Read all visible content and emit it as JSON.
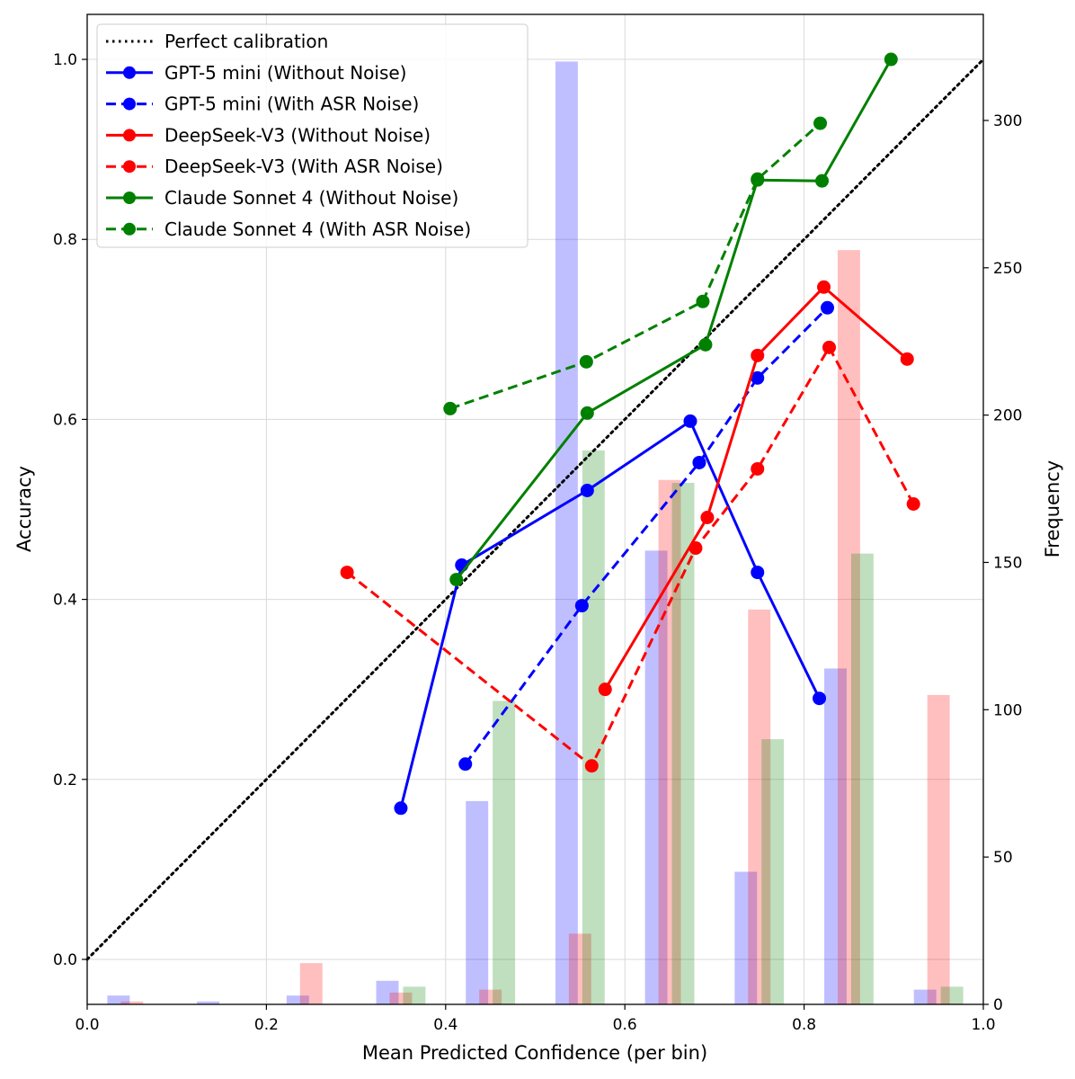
{
  "chart_data": {
    "type": "line",
    "title": "",
    "xlabel": "Mean Predicted Confidence (per bin)",
    "ylabel": "Accuracy",
    "y2label": "Frequency",
    "xlim": [
      0.0,
      1.0
    ],
    "ylim": [
      -0.05,
      1.05
    ],
    "y2lim": [
      0,
      336
    ],
    "xticks": [
      "0.0",
      "0.2",
      "0.4",
      "0.6",
      "0.8",
      "1.0"
    ],
    "yticks": [
      "0.0",
      "0.2",
      "0.4",
      "0.6",
      "0.8",
      "1.0"
    ],
    "y2ticks": [
      "0",
      "50",
      "100",
      "150",
      "200",
      "250",
      "300"
    ],
    "grid": true,
    "legend_position": "top-left",
    "reference": {
      "name": "Perfect calibration",
      "x": [
        0,
        1
      ],
      "y": [
        0,
        1
      ],
      "style": "dotted",
      "color": "#000000"
    },
    "series": [
      {
        "name": "GPT-5 mini (Without Noise)",
        "color": "#0000ff",
        "style": "solid",
        "x": [
          0.35,
          0.418,
          0.558,
          0.673,
          0.748,
          0.817
        ],
        "y": [
          0.168,
          0.438,
          0.521,
          0.598,
          0.43,
          0.29
        ]
      },
      {
        "name": "GPT-5 mini (With ASR Noise)",
        "color": "#0000ff",
        "style": "dashed",
        "x": [
          0.422,
          0.552,
          0.683,
          0.748,
          0.826
        ],
        "y": [
          0.217,
          0.393,
          0.552,
          0.646,
          0.724
        ]
      },
      {
        "name": "DeepSeek-V3 (Without Noise)",
        "color": "#ff0000",
        "style": "solid",
        "x": [
          0.578,
          0.692,
          0.748,
          0.822,
          0.915
        ],
        "y": [
          0.3,
          0.491,
          0.671,
          0.747,
          0.667
        ]
      },
      {
        "name": "DeepSeek-V3 (With ASR Noise)",
        "color": "#ff0000",
        "style": "dashed",
        "x": [
          0.29,
          0.563,
          0.679,
          0.748,
          0.828,
          0.922
        ],
        "y": [
          0.43,
          0.215,
          0.457,
          0.545,
          0.68,
          0.506
        ]
      },
      {
        "name": "Claude Sonnet 4 (Without Noise)",
        "color": "#008000",
        "style": "solid",
        "x": [
          0.412,
          0.558,
          0.69,
          0.748,
          0.82,
          0.897
        ],
        "y": [
          0.422,
          0.607,
          0.683,
          0.866,
          0.865,
          1.0
        ]
      },
      {
        "name": "Claude Sonnet 4 (With ASR Noise)",
        "color": "#008000",
        "style": "dashed",
        "x": [
          0.405,
          0.557,
          0.687,
          0.748,
          0.818
        ],
        "y": [
          0.612,
          0.664,
          0.731,
          0.867,
          0.929
        ]
      }
    ],
    "histograms": [
      {
        "name": "GPT-5 mini frequency",
        "color": "#0000ff",
        "opacity": 0.25,
        "x": [
          0.035,
          0.135,
          0.235,
          0.335,
          0.435,
          0.535,
          0.635,
          0.735,
          0.835,
          0.935
        ],
        "values": [
          3,
          1,
          3,
          8,
          69,
          320,
          154,
          45,
          114,
          5
        ]
      },
      {
        "name": "DeepSeek-V3 frequency",
        "color": "#ff0000",
        "opacity": 0.25,
        "x": [
          0.05,
          0.15,
          0.25,
          0.35,
          0.45,
          0.55,
          0.65,
          0.75,
          0.85,
          0.95
        ],
        "values": [
          1,
          0,
          14,
          4,
          5,
          24,
          178,
          134,
          256,
          105
        ]
      },
      {
        "name": "Claude Sonnet 4 frequency",
        "color": "#008000",
        "opacity": 0.25,
        "x": [
          0.065,
          0.165,
          0.265,
          0.365,
          0.465,
          0.565,
          0.665,
          0.765,
          0.865,
          0.965
        ],
        "values": [
          0,
          0,
          0,
          6,
          103,
          188,
          177,
          90,
          153,
          6
        ]
      }
    ]
  }
}
